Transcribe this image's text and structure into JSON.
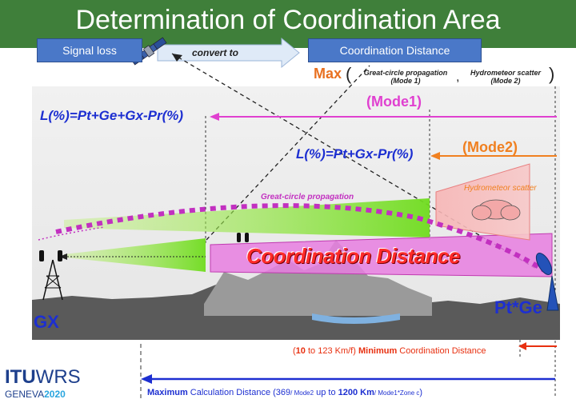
{
  "header": {
    "title": "Determination of Coordination Area",
    "bg": "#3f7f3a"
  },
  "top_flow": {
    "signal_loss": "Signal loss",
    "convert_to": "convert to",
    "coordination_distance": "Coordination Distance"
  },
  "max_expr": {
    "max": "Max",
    "open": "(",
    "gc_line1": "Great-circle propagation",
    "gc_line2": "(Mode 1)",
    "comma": ",",
    "hs_line1": "Hydrometeor scatter",
    "hs_line2": "(Mode 2)",
    "close": ")"
  },
  "mode1": {
    "label": "(Mode1)",
    "color": "#e040d0"
  },
  "mode2": {
    "label": "(Mode2)",
    "color": "#f08020"
  },
  "formulas": {
    "mode1": "L(%)=Pt+Ge+Gx-Pr(%)",
    "mode2": "L(%)=Pt+Gx-Pr(%)"
  },
  "diagram": {
    "great_circle": "Great-circle propagation",
    "hydrometeor": "Hydrometeor scatter",
    "coordination_distance": "Coordination Distance",
    "gx": "GX",
    "pt_ge": "Pt*Ge"
  },
  "min_dist": {
    "value": "10",
    "range_rest": " to 123 Km/f)",
    "minimum": "Minimum",
    "label": " Coordination Distance",
    "open": "("
  },
  "max_calc": {
    "maximum": "Maximum",
    "text1": " Calculation Distance (369",
    "mode2_note": "/ Mode2",
    "text2": " up to ",
    "value": "1200 Km",
    "note2": "/ Mode1*Zone c",
    "close": ")"
  },
  "logo": {
    "itu": "ITU",
    "wrs": "WRS",
    "geneva": "GENEVA",
    "year": "2020"
  }
}
